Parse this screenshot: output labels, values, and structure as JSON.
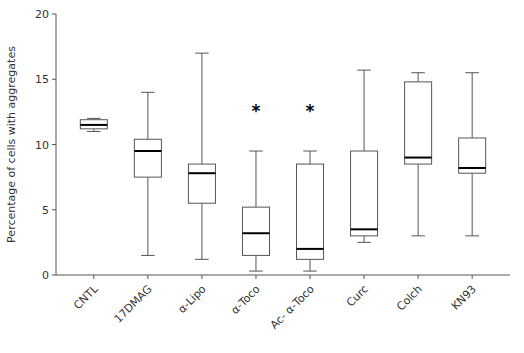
{
  "chart_data": {
    "type": "box",
    "categories": [
      "CNTL",
      "17DMAG",
      "α-Lipo",
      "α-Toco",
      "Ac- α-Toco",
      "Curc",
      "Colch",
      "KN93"
    ],
    "boxes": [
      {
        "whislo": 11.0,
        "q1": 11.2,
        "med": 11.5,
        "q3": 11.9,
        "whishi": 12.0
      },
      {
        "whislo": 1.5,
        "q1": 7.5,
        "med": 9.5,
        "q3": 10.4,
        "whishi": 14.0
      },
      {
        "whislo": 1.2,
        "q1": 5.5,
        "med": 7.8,
        "q3": 8.5,
        "whishi": 17.0
      },
      {
        "whislo": 0.3,
        "q1": 1.5,
        "med": 3.2,
        "q3": 5.2,
        "whishi": 9.5
      },
      {
        "whislo": 0.3,
        "q1": 1.2,
        "med": 2.0,
        "q3": 8.5,
        "whishi": 9.5
      },
      {
        "whislo": 2.5,
        "q1": 3.0,
        "med": 3.5,
        "q3": 9.5,
        "whishi": 15.7
      },
      {
        "whislo": 3.0,
        "q1": 8.5,
        "med": 9.0,
        "q3": 14.8,
        "whishi": 15.5
      },
      {
        "whislo": 3.0,
        "q1": 7.8,
        "med": 8.2,
        "q3": 10.5,
        "whishi": 15.5
      }
    ],
    "annotations": [
      {
        "text": "*",
        "x": "α-Toco",
        "y": 12.0
      },
      {
        "text": "*",
        "x": "Ac- α-Toco",
        "y": 12.0
      }
    ],
    "ylabel": "Percentage of cells with aggregates",
    "ylim": [
      0,
      20
    ],
    "yticks": [
      0,
      5,
      10,
      15,
      20
    ],
    "color": "#555555",
    "grid": false
  }
}
